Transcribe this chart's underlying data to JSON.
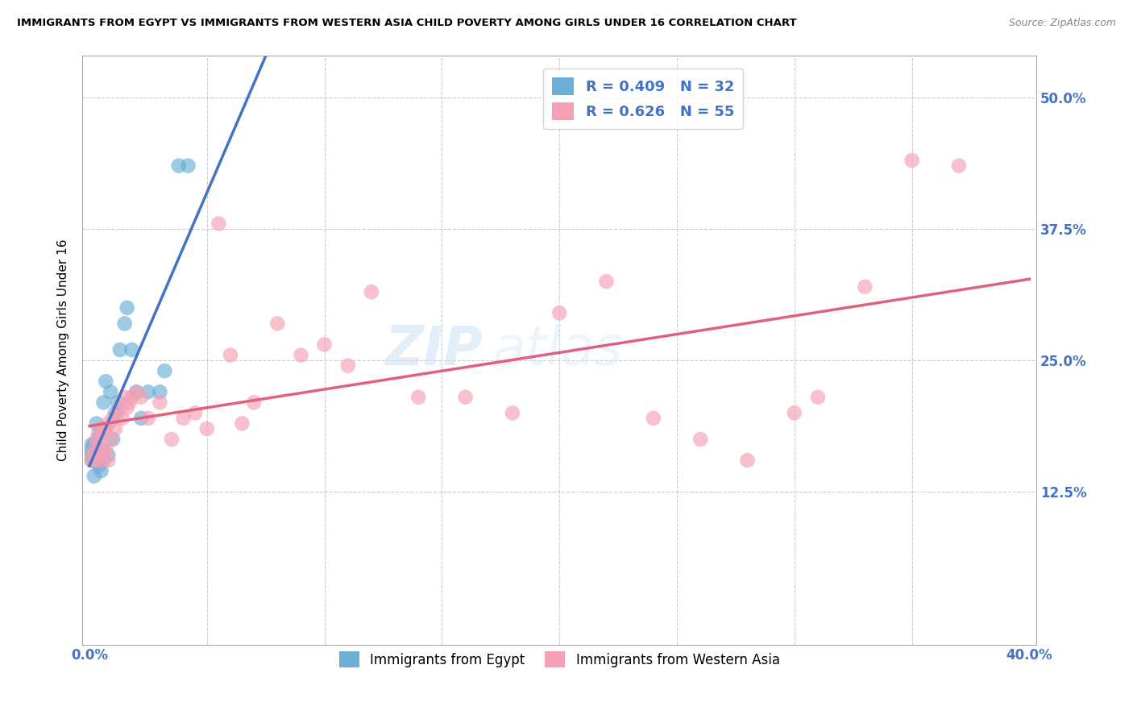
{
  "title": "IMMIGRANTS FROM EGYPT VS IMMIGRANTS FROM WESTERN ASIA CHILD POVERTY AMONG GIRLS UNDER 16 CORRELATION CHART",
  "source": "Source: ZipAtlas.com",
  "ylabel": "Child Poverty Among Girls Under 16",
  "legend_egypt": "Immigrants from Egypt",
  "legend_western": "Immigrants from Western Asia",
  "R_egypt": 0.409,
  "N_egypt": 32,
  "R_western": 0.626,
  "N_western": 55,
  "color_egypt": "#6baed6",
  "color_western": "#f4a0b5",
  "color_blue_text": "#4472c4",
  "color_regression_egypt": "#4472c4",
  "color_regression_western": "#e06080",
  "watermark_zip": "ZIP",
  "watermark_atlas": "atlas",
  "xlim": [
    0.0,
    0.4
  ],
  "ylim": [
    -0.02,
    0.54
  ],
  "yticks": [
    0.0,
    0.125,
    0.25,
    0.375,
    0.5
  ],
  "ytick_labels": [
    "",
    "12.5%",
    "25.0%",
    "37.5%",
    "50.0%"
  ],
  "xtick_positions": [
    0.0,
    0.05,
    0.1,
    0.15,
    0.2,
    0.25,
    0.3,
    0.35,
    0.4
  ],
  "egypt_x": [
    0.001,
    0.001,
    0.001,
    0.001,
    0.002,
    0.002,
    0.002,
    0.003,
    0.003,
    0.004,
    0.004,
    0.005,
    0.005,
    0.006,
    0.006,
    0.007,
    0.008,
    0.009,
    0.01,
    0.011,
    0.012,
    0.013,
    0.015,
    0.016,
    0.018,
    0.02,
    0.022,
    0.025,
    0.03,
    0.032,
    0.038,
    0.042
  ],
  "egypt_y": [
    0.155,
    0.16,
    0.165,
    0.17,
    0.14,
    0.155,
    0.17,
    0.16,
    0.19,
    0.15,
    0.18,
    0.145,
    0.165,
    0.155,
    0.21,
    0.23,
    0.16,
    0.22,
    0.175,
    0.2,
    0.21,
    0.26,
    0.285,
    0.3,
    0.26,
    0.22,
    0.195,
    0.22,
    0.22,
    0.24,
    0.435,
    0.435
  ],
  "western_x": [
    0.001,
    0.002,
    0.002,
    0.003,
    0.003,
    0.004,
    0.004,
    0.005,
    0.005,
    0.006,
    0.006,
    0.007,
    0.007,
    0.008,
    0.008,
    0.009,
    0.01,
    0.011,
    0.012,
    0.013,
    0.014,
    0.015,
    0.016,
    0.017,
    0.018,
    0.02,
    0.022,
    0.025,
    0.03,
    0.035,
    0.04,
    0.045,
    0.05,
    0.055,
    0.06,
    0.065,
    0.07,
    0.08,
    0.09,
    0.1,
    0.11,
    0.12,
    0.14,
    0.16,
    0.18,
    0.2,
    0.22,
    0.24,
    0.26,
    0.28,
    0.3,
    0.31,
    0.33,
    0.35,
    0.37
  ],
  "western_y": [
    0.155,
    0.16,
    0.165,
    0.155,
    0.175,
    0.16,
    0.185,
    0.155,
    0.175,
    0.165,
    0.185,
    0.165,
    0.185,
    0.155,
    0.19,
    0.175,
    0.195,
    0.185,
    0.2,
    0.205,
    0.195,
    0.215,
    0.205,
    0.21,
    0.215,
    0.22,
    0.215,
    0.195,
    0.21,
    0.175,
    0.195,
    0.2,
    0.185,
    0.38,
    0.255,
    0.19,
    0.21,
    0.285,
    0.255,
    0.265,
    0.245,
    0.315,
    0.215,
    0.215,
    0.2,
    0.295,
    0.325,
    0.195,
    0.175,
    0.155,
    0.2,
    0.215,
    0.32,
    0.44,
    0.435
  ]
}
